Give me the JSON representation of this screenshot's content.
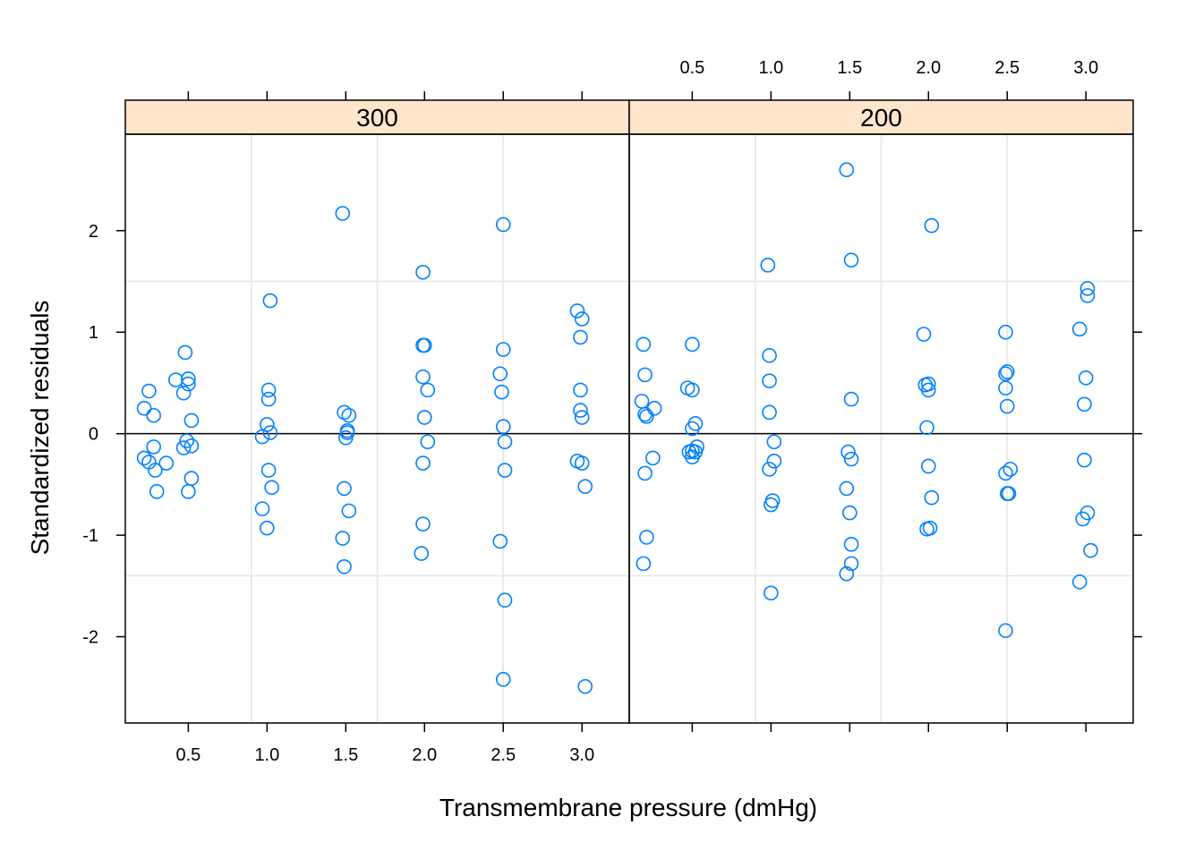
{
  "chart_data": {
    "type": "scatter",
    "xlabel": "Transmembrane pressure (dmHg)",
    "ylabel": "Standardized residuals",
    "xlim": [
      0.1,
      3.3
    ],
    "ylim": [
      -2.85,
      2.95
    ],
    "x_ticks": [
      "0.5",
      "1.0",
      "1.5",
      "2.0",
      "2.5",
      "3.0"
    ],
    "x_tick_values": [
      0.5,
      1.0,
      1.5,
      2.0,
      2.5,
      3.0
    ],
    "y_ticks": [
      "-2",
      "-1",
      "0",
      "1",
      "2"
    ],
    "y_tick_values": [
      -2,
      -1,
      0,
      1,
      2
    ],
    "grid": true,
    "reference_line_y": 0,
    "colors": {
      "point": "#0080ff",
      "strip": "#ffe5cc",
      "grid": "#e6e6e6",
      "frame": "#000000"
    },
    "panels": [
      {
        "label": "300",
        "points": [
          [
            0.22,
            -0.24
          ],
          [
            0.25,
            -0.28
          ],
          [
            0.28,
            -0.13
          ],
          [
            0.29,
            -0.36
          ],
          [
            0.3,
            -0.57
          ],
          [
            0.22,
            0.25
          ],
          [
            0.25,
            0.42
          ],
          [
            0.28,
            0.18
          ],
          [
            0.36,
            -0.29
          ],
          [
            0.42,
            0.53
          ],
          [
            0.47,
            -0.14
          ],
          [
            0.49,
            -0.07
          ],
          [
            0.5,
            -0.57
          ],
          [
            0.52,
            -0.44
          ],
          [
            0.52,
            -0.12
          ],
          [
            0.52,
            0.13
          ],
          [
            0.47,
            0.4
          ],
          [
            0.5,
            0.49
          ],
          [
            0.5,
            0.54
          ],
          [
            0.48,
            0.8
          ],
          [
            1.02,
            1.31
          ],
          [
            1.01,
            0.43
          ],
          [
            1.01,
            0.34
          ],
          [
            1.0,
            0.09
          ],
          [
            1.02,
            0.01
          ],
          [
            0.97,
            -0.03
          ],
          [
            1.01,
            -0.36
          ],
          [
            1.03,
            -0.53
          ],
          [
            0.97,
            -0.74
          ],
          [
            1.0,
            -0.93
          ],
          [
            1.48,
            2.17
          ],
          [
            1.49,
            0.21
          ],
          [
            1.52,
            0.18
          ],
          [
            1.51,
            0.03
          ],
          [
            1.5,
            -0.04
          ],
          [
            1.51,
            0.01
          ],
          [
            1.49,
            -0.54
          ],
          [
            1.52,
            -0.76
          ],
          [
            1.48,
            -1.03
          ],
          [
            1.49,
            -1.31
          ],
          [
            1.99,
            1.59
          ],
          [
            1.99,
            0.87
          ],
          [
            2.0,
            0.87
          ],
          [
            1.99,
            0.56
          ],
          [
            2.02,
            0.43
          ],
          [
            2.0,
            0.16
          ],
          [
            2.02,
            -0.08
          ],
          [
            1.99,
            -0.29
          ],
          [
            1.99,
            -0.89
          ],
          [
            1.98,
            -1.18
          ],
          [
            2.5,
            2.06
          ],
          [
            2.5,
            0.83
          ],
          [
            2.48,
            0.59
          ],
          [
            2.49,
            0.41
          ],
          [
            2.5,
            0.07
          ],
          [
            2.51,
            -0.08
          ],
          [
            2.51,
            -0.36
          ],
          [
            2.48,
            -1.06
          ],
          [
            2.51,
            -1.64
          ],
          [
            2.5,
            -2.42
          ],
          [
            2.97,
            1.21
          ],
          [
            3.0,
            1.13
          ],
          [
            2.99,
            0.95
          ],
          [
            2.99,
            0.43
          ],
          [
            2.99,
            0.23
          ],
          [
            3.0,
            0.16
          ],
          [
            2.97,
            -0.27
          ],
          [
            3.0,
            -0.29
          ],
          [
            3.02,
            -0.52
          ],
          [
            3.02,
            -2.49
          ]
        ]
      },
      {
        "label": "200",
        "points": [
          [
            0.19,
            0.88
          ],
          [
            0.2,
            0.58
          ],
          [
            0.18,
            0.32
          ],
          [
            0.2,
            0.19
          ],
          [
            0.21,
            0.17
          ],
          [
            0.26,
            0.25
          ],
          [
            0.25,
            -0.24
          ],
          [
            0.2,
            -0.39
          ],
          [
            0.21,
            -1.02
          ],
          [
            0.19,
            -1.28
          ],
          [
            0.5,
            0.88
          ],
          [
            0.47,
            0.45
          ],
          [
            0.5,
            0.43
          ],
          [
            0.52,
            0.1
          ],
          [
            0.5,
            0.05
          ],
          [
            0.53,
            -0.13
          ],
          [
            0.5,
            -0.17
          ],
          [
            0.52,
            -0.18
          ],
          [
            0.5,
            -0.23
          ],
          [
            0.48,
            -0.18
          ],
          [
            0.98,
            1.66
          ],
          [
            0.99,
            0.77
          ],
          [
            0.99,
            0.52
          ],
          [
            0.99,
            0.21
          ],
          [
            1.02,
            -0.08
          ],
          [
            1.02,
            -0.27
          ],
          [
            0.99,
            -0.35
          ],
          [
            1.01,
            -0.66
          ],
          [
            1.0,
            -0.7
          ],
          [
            1.0,
            -1.57
          ],
          [
            1.48,
            2.6
          ],
          [
            1.51,
            1.71
          ],
          [
            1.51,
            0.34
          ],
          [
            1.49,
            -0.18
          ],
          [
            1.51,
            -0.25
          ],
          [
            1.48,
            -0.54
          ],
          [
            1.5,
            -0.78
          ],
          [
            1.51,
            -1.09
          ],
          [
            1.51,
            -1.28
          ],
          [
            1.48,
            -1.38
          ],
          [
            2.02,
            2.05
          ],
          [
            1.97,
            0.98
          ],
          [
            1.98,
            0.48
          ],
          [
            2.0,
            0.49
          ],
          [
            2.0,
            0.43
          ],
          [
            1.99,
            0.06
          ],
          [
            2.0,
            -0.32
          ],
          [
            2.02,
            -0.63
          ],
          [
            1.99,
            -0.94
          ],
          [
            2.01,
            -0.93
          ],
          [
            2.49,
            1.0
          ],
          [
            2.49,
            0.59
          ],
          [
            2.5,
            0.61
          ],
          [
            2.49,
            0.45
          ],
          [
            2.5,
            0.27
          ],
          [
            2.52,
            -0.35
          ],
          [
            2.49,
            -0.39
          ],
          [
            2.5,
            -0.59
          ],
          [
            2.51,
            -0.59
          ],
          [
            2.49,
            -1.94
          ],
          [
            3.01,
            1.43
          ],
          [
            3.01,
            1.36
          ],
          [
            2.96,
            1.03
          ],
          [
            3.0,
            0.55
          ],
          [
            2.99,
            0.29
          ],
          [
            2.99,
            -0.26
          ],
          [
            3.01,
            -0.78
          ],
          [
            2.98,
            -0.84
          ],
          [
            3.03,
            -1.15
          ],
          [
            2.96,
            -1.46
          ]
        ]
      }
    ]
  }
}
